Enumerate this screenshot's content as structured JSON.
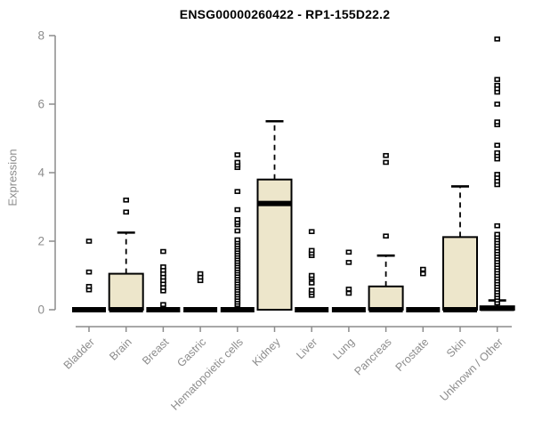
{
  "chart_data": {
    "type": "boxplot",
    "title": "ENSG00000260422 - RP1-155D22.2",
    "ylabel": "Expression",
    "xlabel": "",
    "ylim": [
      0,
      8
    ],
    "yticks": [
      0,
      2,
      4,
      6,
      8
    ],
    "grid": false,
    "legend": "none",
    "categories": [
      "Bladder",
      "Brain",
      "Breast",
      "Gastric",
      "Hematopoietic cells",
      "Kidney",
      "Liver",
      "Lung",
      "Pancreas",
      "Prostate",
      "Skin",
      "Unknown / Other"
    ],
    "series": [
      {
        "name": "Bladder",
        "q1": 0,
        "median": 0,
        "q3": 0,
        "whisker_low": 0,
        "whisker_high": 0,
        "outliers": [
          0.58,
          0.68,
          1.1,
          2.0
        ]
      },
      {
        "name": "Brain",
        "q1": 0,
        "median": 0,
        "q3": 1.05,
        "whisker_low": 0,
        "whisker_high": 2.25,
        "outliers": [
          2.85,
          3.2
        ]
      },
      {
        "name": "Breast",
        "q1": 0,
        "median": 0,
        "q3": 0,
        "whisker_low": 0,
        "whisker_high": 0,
        "outliers": [
          0.15,
          0.55,
          0.65,
          0.75,
          0.85,
          0.95,
          1.05,
          1.15,
          1.25,
          1.7
        ]
      },
      {
        "name": "Gastric",
        "q1": 0,
        "median": 0,
        "q3": 0,
        "whisker_low": 0,
        "whisker_high": 0,
        "outliers": [
          0.85,
          0.95,
          1.05
        ]
      },
      {
        "name": "Hematopoietic cells",
        "q1": 0,
        "median": 0,
        "q3": 0,
        "whisker_low": 0,
        "whisker_high": 0,
        "outliers": [
          0.15,
          0.22,
          0.29,
          0.36,
          0.43,
          0.5,
          0.57,
          0.64,
          0.71,
          0.78,
          0.85,
          0.92,
          0.99,
          1.06,
          1.13,
          1.2,
          1.27,
          1.34,
          1.41,
          1.48,
          1.55,
          1.62,
          1.69,
          1.76,
          1.83,
          1.9,
          1.97,
          2.04,
          2.3,
          2.48,
          2.55,
          2.63,
          2.92,
          3.45,
          4.15,
          4.22,
          4.3,
          4.52
        ]
      },
      {
        "name": "Kidney",
        "q1": 0,
        "median": 3.1,
        "q3": 3.8,
        "whisker_low": 0,
        "whisker_high": 5.5,
        "outliers": []
      },
      {
        "name": "Liver",
        "q1": 0,
        "median": 0,
        "q3": 0,
        "whisker_low": 0,
        "whisker_high": 0,
        "outliers": [
          0.42,
          0.5,
          0.57,
          0.78,
          0.93,
          1.0,
          1.58,
          1.65,
          1.73,
          2.28
        ]
      },
      {
        "name": "Lung",
        "q1": 0,
        "median": 0,
        "q3": 0,
        "whisker_low": 0,
        "whisker_high": 0,
        "outliers": [
          0.48,
          0.6,
          1.38,
          1.68
        ]
      },
      {
        "name": "Pancreas",
        "q1": 0,
        "median": 0,
        "q3": 0.68,
        "whisker_low": 0,
        "whisker_high": 1.58,
        "outliers": [
          2.15,
          4.3,
          4.5
        ]
      },
      {
        "name": "Prostate",
        "q1": 0,
        "median": 0,
        "q3": 0,
        "whisker_low": 0,
        "whisker_high": 0,
        "outliers": [
          1.05,
          1.18
        ]
      },
      {
        "name": "Skin",
        "q1": 0,
        "median": 0,
        "q3": 2.12,
        "whisker_low": 0,
        "whisker_high": 3.6,
        "outliers": []
      },
      {
        "name": "Unknown / Other",
        "q1": 0,
        "median": 0.04,
        "q3": 0.1,
        "whisker_low": 0,
        "whisker_high": 0.27,
        "outliers": [
          0.2,
          0.28,
          0.36,
          0.44,
          0.52,
          0.6,
          0.68,
          0.76,
          0.84,
          0.92,
          1.0,
          1.08,
          1.16,
          1.24,
          1.32,
          1.4,
          1.48,
          1.56,
          1.64,
          1.72,
          1.8,
          1.88,
          1.96,
          2.04,
          2.12,
          2.2,
          2.45,
          3.65,
          3.75,
          3.85,
          3.95,
          4.4,
          4.5,
          4.58,
          4.8,
          5.4,
          5.48,
          6.0,
          6.35,
          6.45,
          6.55,
          6.72,
          7.9
        ]
      }
    ],
    "colors": {
      "box_fill": "#EDE6CB",
      "box_stroke": "#000000",
      "median": "#000000",
      "whisker": "#000000",
      "outlier_fill": "#FFFFFF",
      "axis": "#8c8c8c",
      "tick_label": "#8c8c8c",
      "title": "#000000",
      "background": "#FFFFFF"
    }
  }
}
